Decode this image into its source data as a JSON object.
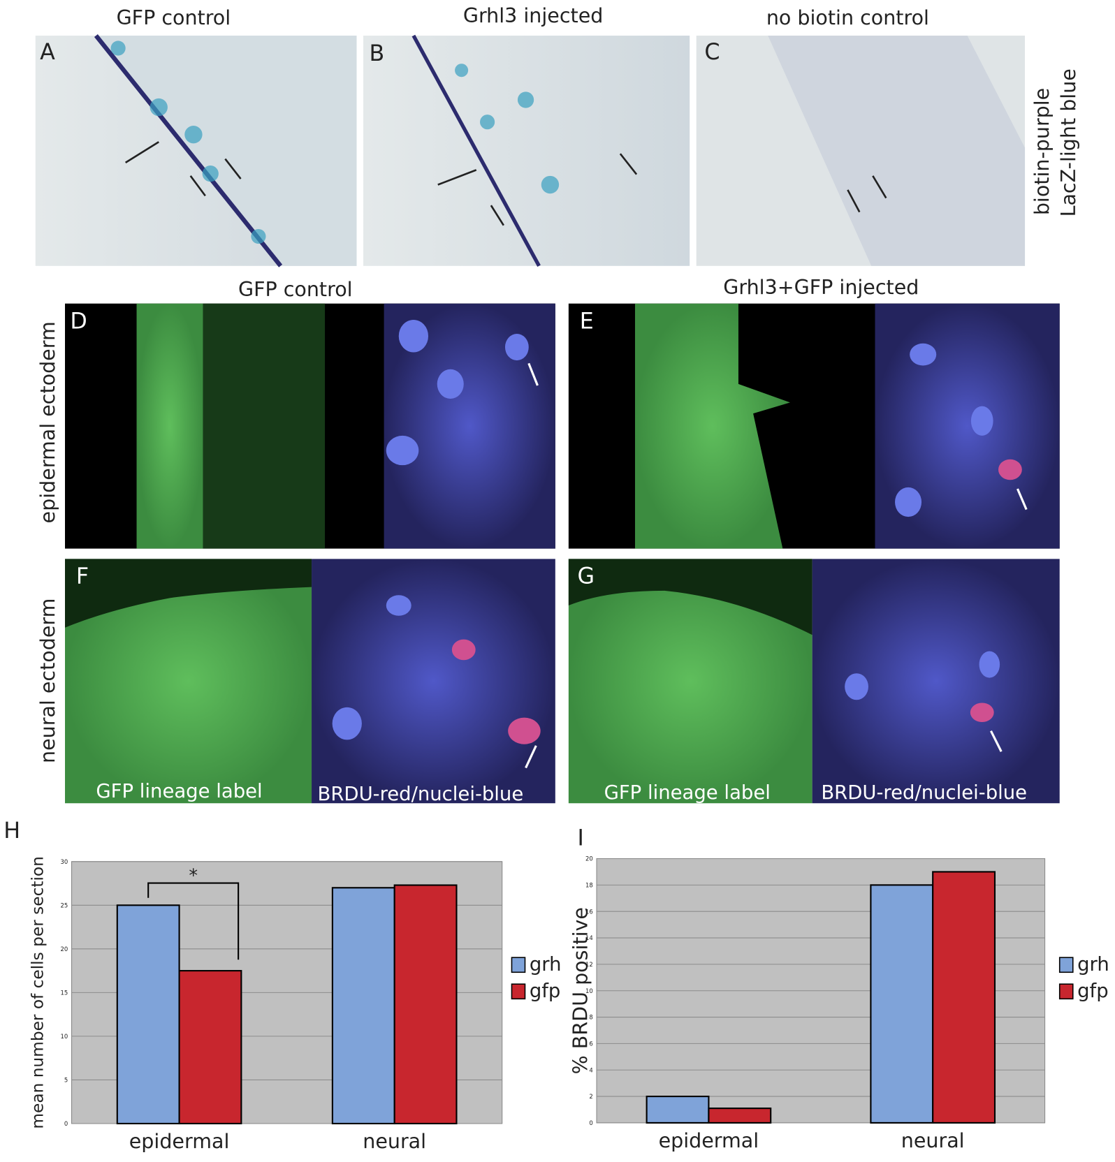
{
  "panels": {
    "top": {
      "titles": [
        "GFP control",
        "Grhl3 injected",
        "no biotin control"
      ],
      "letters": [
        "A",
        "B",
        "C"
      ],
      "side_labels": [
        "biotin-purple",
        "LacZ-light blue"
      ]
    },
    "middle": {
      "titles": [
        "GFP control",
        "Grhl3+GFP injected"
      ],
      "letters": [
        "D",
        "E",
        "F",
        "G"
      ],
      "row_labels": [
        "epidermal ectoderm",
        "neural ectoderm"
      ],
      "captions": [
        "GFP lineage label",
        "BRDU-red/nuclei-blue",
        "GFP lineage label",
        "BRDU-red/nuclei-blue"
      ]
    }
  },
  "chart_data": [
    {
      "type": "bar",
      "letter": "H",
      "ylabel": "mean number of cells per section",
      "categories": [
        "epidermal",
        "neural"
      ],
      "series": [
        {
          "name": "grh",
          "color": "#7fa3d9",
          "values": [
            25,
            27
          ]
        },
        {
          "name": "gfp",
          "color": "#c8262e",
          "values": [
            17.5,
            27.3
          ]
        }
      ],
      "ylim": [
        0,
        30
      ],
      "yticks": [
        0,
        5,
        10,
        15,
        20,
        25,
        30
      ],
      "grid": true,
      "annotation": "*"
    },
    {
      "type": "bar",
      "letter": "I",
      "ylabel": "% BRDU positive",
      "categories": [
        "epidermal",
        "neural"
      ],
      "series": [
        {
          "name": "grh",
          "color": "#7fa3d9",
          "values": [
            2,
            18
          ]
        },
        {
          "name": "gfp",
          "color": "#c8262e",
          "values": [
            1.1,
            19
          ]
        }
      ],
      "ylim": [
        0,
        20
      ],
      "yticks": [
        0,
        2,
        4,
        6,
        8,
        10,
        12,
        14,
        16,
        18,
        20
      ],
      "grid": true
    }
  ]
}
